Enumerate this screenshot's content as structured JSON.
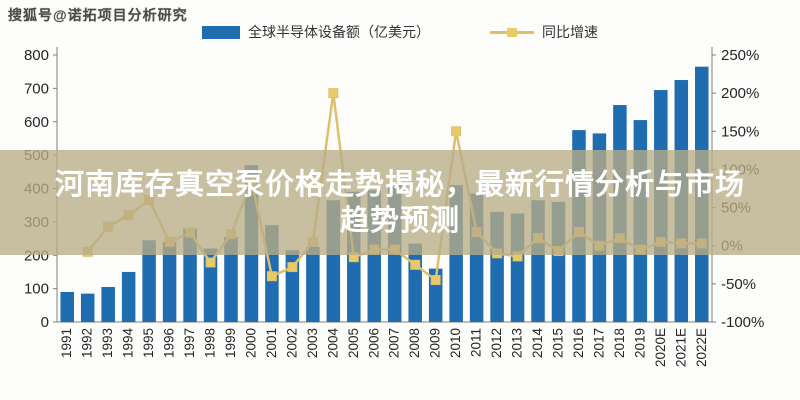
{
  "watermark_logo": "搜狐号@诺拓项目分析研究",
  "headline": {
    "line1": "河南库存真空泵价格走势揭秘，最新行情分析与市场",
    "line2": "趋势预测"
  },
  "legend": {
    "bar_label": "全球半导体设备额（亿美元）",
    "line_label": "同比增速"
  },
  "colors": {
    "bar": "#1f6cb0",
    "line": "#ddc06e",
    "marker": "#e8ca67",
    "axis": "#7f7f7f",
    "tick_text": "#262626",
    "overlay_band": "rgba(185,172,134,0.78)",
    "headline_text": "#ffffff"
  },
  "chart_data": {
    "type": "bar",
    "title": "",
    "categories": [
      "1991",
      "1992",
      "1993",
      "1994",
      "1995",
      "1996",
      "1997",
      "1998",
      "1999",
      "2000",
      "2001",
      "2002",
      "2003",
      "2004",
      "2005",
      "2006",
      "2007",
      "2008",
      "2009",
      "2010",
      "2011",
      "2012",
      "2013",
      "2014",
      "2015",
      "2016",
      "2017",
      "2018",
      "2019",
      "2020E",
      "2021E",
      "2022E"
    ],
    "series": [
      {
        "name": "全球半导体设备额（亿美元）",
        "type": "bar",
        "axis": "left",
        "values": [
          90,
          85,
          105,
          150,
          245,
          240,
          280,
          220,
          255,
          470,
          290,
          215,
          225,
          365,
          390,
          395,
          415,
          235,
          160,
          410,
          385,
          330,
          325,
          365,
          360,
          575,
          565,
          650,
          605,
          695,
          725,
          765
        ]
      },
      {
        "name": "同比增速",
        "type": "line",
        "axis": "right",
        "values": [
          null,
          -8,
          25,
          40,
          60,
          5,
          17,
          -22,
          15,
          85,
          -40,
          -28,
          5,
          200,
          -15,
          -5,
          -5,
          -25,
          -45,
          150,
          18,
          -10,
          -14,
          10,
          -7,
          18,
          0,
          10,
          -5,
          5,
          3,
          3
        ]
      }
    ],
    "left_axis": {
      "min": 0,
      "max": 800,
      "step": 100,
      "tick_labels": [
        "800",
        "700",
        "600",
        "500",
        "400",
        "300",
        "200",
        "100",
        "0"
      ]
    },
    "right_axis": {
      "min": -100,
      "max": 250,
      "step": 50,
      "tick_labels": [
        "250%",
        "200%",
        "150%",
        "100%",
        "50%",
        "0%",
        "-50%",
        "-100%"
      ]
    },
    "grid": false,
    "legend_position": "top"
  }
}
